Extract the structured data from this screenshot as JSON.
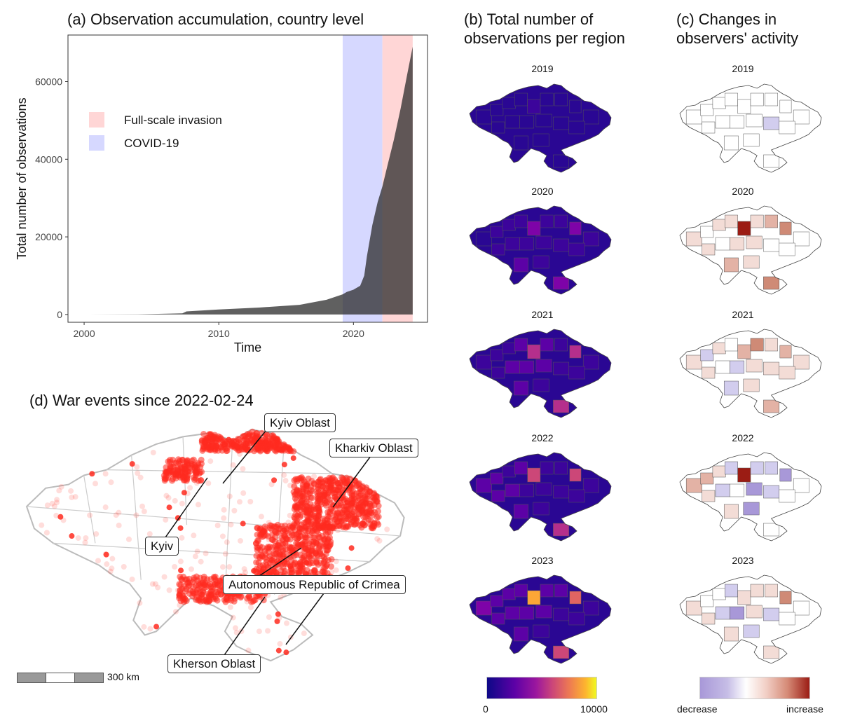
{
  "panel_a": {
    "title": "(a) Observation accumulation, country level",
    "legend": [
      {
        "label": "Full-scale invasion",
        "color": "#ffd6d6"
      },
      {
        "label": "COVID-19",
        "color": "#d6d8ff"
      }
    ]
  },
  "panel_b": {
    "title_line1": "(b) Total number of",
    "title_line2": "observations per region",
    "colorbar_min": "0",
    "colorbar_max": "10000"
  },
  "panel_c": {
    "title_line1": "(c) Changes in",
    "title_line2": "observers' activity",
    "colorbar_min": "decrease",
    "colorbar_max": "increase"
  },
  "years": [
    "2019",
    "2020",
    "2021",
    "2022",
    "2023"
  ],
  "panel_d": {
    "title": "(d) War events since 2022-02-24",
    "labels": [
      "Kyiv Oblast",
      "Kharkiv Oblast",
      "Kyiv",
      "Autonomous Republic of Crimea",
      "Kherson Oblast"
    ],
    "scale_label": "300 km"
  },
  "chart_data": [
    {
      "type": "area",
      "title": "(a) Observation accumulation, country level",
      "xlabel": "Time",
      "ylabel": "Total number of observations",
      "xlim": [
        1998.8,
        2025.5
      ],
      "ylim": [
        -2000,
        72000
      ],
      "xticks": [
        2000,
        2010,
        2020
      ],
      "yticks": [
        0,
        20000,
        40000,
        60000
      ],
      "shaded_periods": [
        {
          "name": "COVID-19",
          "start": 2019.2,
          "end": 2022.15,
          "color": "#d6d8ff"
        },
        {
          "name": "Full-scale invasion",
          "start": 2022.15,
          "end": 2024.4,
          "color": "#ffd6d6"
        }
      ],
      "x": [
        2000,
        2004,
        2007.3,
        2007.6,
        2010,
        2013,
        2016,
        2018,
        2019.2,
        2019.5,
        2020,
        2020.5,
        2020.8,
        2021,
        2021.4,
        2021.8,
        2022.15,
        2022.5,
        2023,
        2023.5,
        2024,
        2024.4
      ],
      "y": [
        0,
        50,
        300,
        800,
        1300,
        1800,
        2500,
        3800,
        5200,
        5800,
        6400,
        7400,
        10000,
        15000,
        23000,
        29000,
        33000,
        38000,
        45000,
        53000,
        62000,
        69000
      ]
    },
    {
      "type": "heatmap",
      "title": "(b) Total number of observations per region",
      "years": [
        "2019",
        "2020",
        "2021",
        "2022",
        "2023"
      ],
      "scale_range": [
        0,
        10000
      ]
    },
    {
      "type": "heatmap",
      "title": "(c) Changes in observers' activity",
      "years": [
        "2019",
        "2020",
        "2021",
        "2022",
        "2023"
      ],
      "scale_labels": [
        "decrease",
        "increase"
      ]
    }
  ]
}
